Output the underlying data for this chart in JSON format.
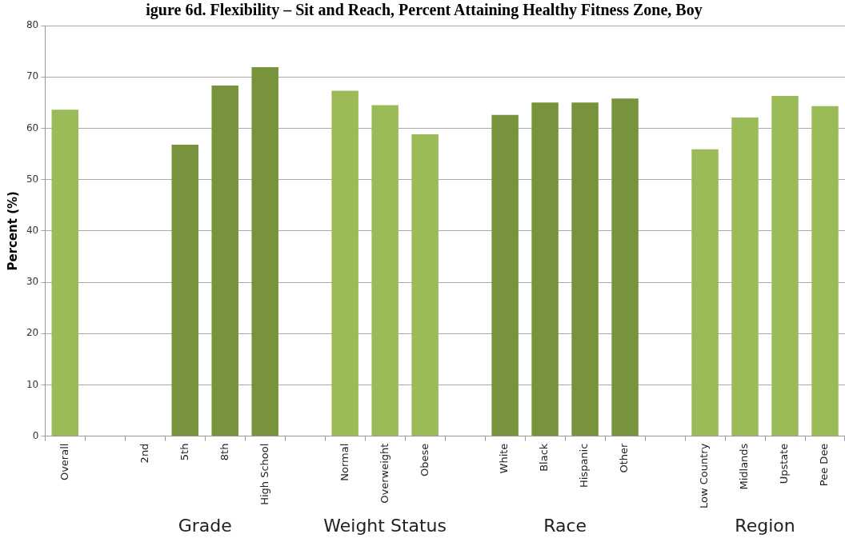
{
  "chart_data": {
    "type": "bar",
    "title": "igure 6d. Flexibility – Sit and Reach, Percent Attaining Healthy Fitness Zone, Boy",
    "ylabel": "Percent (%)",
    "categories": [
      "Overall",
      null,
      "2nd",
      "5th",
      "8th",
      "High School",
      null,
      "Normal",
      "Overweight",
      "Obese",
      null,
      "White",
      "Black",
      "Hispanic",
      "Other",
      null,
      "Low Country",
      "Midlands",
      "Upstate",
      "Pee Dee"
    ],
    "values": [
      63.6,
      null,
      null,
      56.8,
      68.3,
      71.9,
      null,
      67.3,
      64.5,
      58.8,
      null,
      62.6,
      65.0,
      65.0,
      65.8,
      null,
      55.9,
      62.1,
      66.3,
      64.3
    ],
    "colors": [
      "#9bbb59",
      null,
      "#77933c",
      "#77933c",
      "#77933c",
      "#77933c",
      null,
      "#9bbb59",
      "#9bbb59",
      "#9bbb59",
      null,
      "#77933c",
      "#77933c",
      "#77933c",
      "#77933c",
      null,
      "#9bbb59",
      "#9bbb59",
      "#9bbb59",
      "#9bbb59"
    ],
    "annotations": [
      "Grade",
      "Weight Status",
      "Race",
      "Region"
    ],
    "ylim": [
      0,
      80
    ],
    "yticks": [
      0,
      10,
      20,
      30,
      40,
      50,
      60,
      70,
      80
    ],
    "grid": "y",
    "legend": false
  }
}
